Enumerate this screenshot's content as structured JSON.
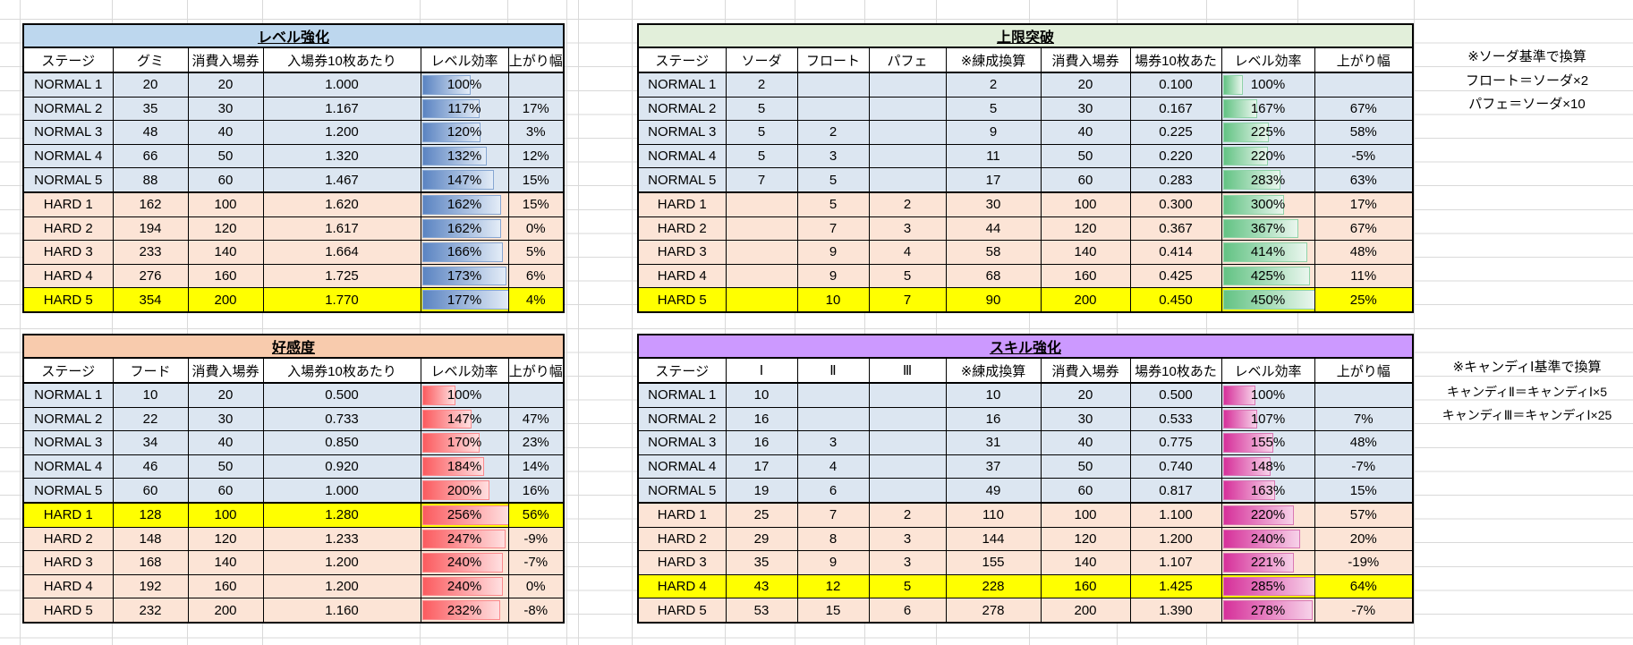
{
  "tables": [
    {
      "id": "level",
      "title": "レベル強化",
      "title_bg": "#bdd7ee",
      "columns": [
        "ステージ",
        "グミ",
        "消費入場券",
        "入場券10枚あたり",
        "レベル効率",
        "上がり幅"
      ],
      "thick_cols": [
        0
      ],
      "bar": {
        "start": "#5b84c2",
        "end": "#e3ecf7",
        "border": "#86a6d2"
      },
      "bar_max": 177,
      "highlight_index": 9,
      "rows": [
        {
          "stage": "NORMAL 1",
          "cells": [
            "20",
            "20",
            "1.000"
          ],
          "eff": 100,
          "gain": ""
        },
        {
          "stage": "NORMAL 2",
          "cells": [
            "35",
            "30",
            "1.167"
          ],
          "eff": 117,
          "gain": "17%"
        },
        {
          "stage": "NORMAL 3",
          "cells": [
            "48",
            "40",
            "1.200"
          ],
          "eff": 120,
          "gain": "3%"
        },
        {
          "stage": "NORMAL 4",
          "cells": [
            "66",
            "50",
            "1.320"
          ],
          "eff": 132,
          "gain": "12%"
        },
        {
          "stage": "NORMAL 5",
          "cells": [
            "88",
            "60",
            "1.467"
          ],
          "eff": 147,
          "gain": "15%"
        },
        {
          "stage": "HARD 1",
          "cells": [
            "162",
            "100",
            "1.620"
          ],
          "eff": 162,
          "gain": "15%"
        },
        {
          "stage": "HARD 2",
          "cells": [
            "194",
            "120",
            "1.617"
          ],
          "eff": 162,
          "gain": "0%"
        },
        {
          "stage": "HARD 3",
          "cells": [
            "233",
            "140",
            "1.664"
          ],
          "eff": 166,
          "gain": "5%"
        },
        {
          "stage": "HARD 4",
          "cells": [
            "276",
            "160",
            "1.725"
          ],
          "eff": 173,
          "gain": "6%"
        },
        {
          "stage": "HARD 5",
          "cells": [
            "354",
            "200",
            "1.770"
          ],
          "eff": 177,
          "gain": "4%"
        }
      ]
    },
    {
      "id": "limit",
      "title": "上限突破",
      "title_bg": "#e2efda",
      "columns": [
        "ステージ",
        "ソーダ",
        "フロート",
        "パフェ",
        "※練成換算",
        "消費入場券",
        "場券10枚あた",
        "レベル効率",
        "上がり幅"
      ],
      "thick_cols": [
        0,
        3
      ],
      "bar": {
        "start": "#63c384",
        "end": "#eaf6ee",
        "border": "#8fd3a8"
      },
      "bar_max": 450,
      "highlight_index": 9,
      "rows": [
        {
          "stage": "NORMAL 1",
          "cells": [
            "2",
            "",
            "",
            "2",
            "20",
            "0.100"
          ],
          "eff": 100,
          "gain": ""
        },
        {
          "stage": "NORMAL 2",
          "cells": [
            "5",
            "",
            "",
            "5",
            "30",
            "0.167"
          ],
          "eff": 167,
          "gain": "67%"
        },
        {
          "stage": "NORMAL 3",
          "cells": [
            "5",
            "2",
            "",
            "9",
            "40",
            "0.225"
          ],
          "eff": 225,
          "gain": "58%"
        },
        {
          "stage": "NORMAL 4",
          "cells": [
            "5",
            "3",
            "",
            "11",
            "50",
            "0.220"
          ],
          "eff": 220,
          "gain": "-5%"
        },
        {
          "stage": "NORMAL 5",
          "cells": [
            "7",
            "5",
            "",
            "17",
            "60",
            "0.283"
          ],
          "eff": 283,
          "gain": "63%"
        },
        {
          "stage": "HARD 1",
          "cells": [
            "",
            "5",
            "2",
            "30",
            "100",
            "0.300"
          ],
          "eff": 300,
          "gain": "17%"
        },
        {
          "stage": "HARD 2",
          "cells": [
            "",
            "7",
            "3",
            "44",
            "120",
            "0.367"
          ],
          "eff": 367,
          "gain": "67%"
        },
        {
          "stage": "HARD 3",
          "cells": [
            "",
            "9",
            "4",
            "58",
            "140",
            "0.414"
          ],
          "eff": 414,
          "gain": "48%"
        },
        {
          "stage": "HARD 4",
          "cells": [
            "",
            "9",
            "5",
            "68",
            "160",
            "0.425"
          ],
          "eff": 425,
          "gain": "11%"
        },
        {
          "stage": "HARD 5",
          "cells": [
            "",
            "10",
            "7",
            "90",
            "200",
            "0.450"
          ],
          "eff": 450,
          "gain": "25%"
        }
      ]
    },
    {
      "id": "affection",
      "title": "好感度",
      "title_bg": "#f8cbad",
      "columns": [
        "ステージ",
        "フード",
        "消費入場券",
        "入場券10枚あたり",
        "レベル効率",
        "上がり幅"
      ],
      "thick_cols": [
        0
      ],
      "bar": {
        "start": "#fb5b5f",
        "end": "#ffdfe0",
        "border": "#fb8a8d"
      },
      "bar_max": 256,
      "highlight_index": 5,
      "rows": [
        {
          "stage": "NORMAL 1",
          "cells": [
            "10",
            "20",
            "0.500"
          ],
          "eff": 100,
          "gain": ""
        },
        {
          "stage": "NORMAL 2",
          "cells": [
            "22",
            "30",
            "0.733"
          ],
          "eff": 147,
          "gain": "47%"
        },
        {
          "stage": "NORMAL 3",
          "cells": [
            "34",
            "40",
            "0.850"
          ],
          "eff": 170,
          "gain": "23%"
        },
        {
          "stage": "NORMAL 4",
          "cells": [
            "46",
            "50",
            "0.920"
          ],
          "eff": 184,
          "gain": "14%"
        },
        {
          "stage": "NORMAL 5",
          "cells": [
            "60",
            "60",
            "1.000"
          ],
          "eff": 200,
          "gain": "16%"
        },
        {
          "stage": "HARD 1",
          "cells": [
            "128",
            "100",
            "1.280"
          ],
          "eff": 256,
          "gain": "56%"
        },
        {
          "stage": "HARD 2",
          "cells": [
            "148",
            "120",
            "1.233"
          ],
          "eff": 247,
          "gain": "-9%"
        },
        {
          "stage": "HARD 3",
          "cells": [
            "168",
            "140",
            "1.200"
          ],
          "eff": 240,
          "gain": "-7%"
        },
        {
          "stage": "HARD 4",
          "cells": [
            "192",
            "160",
            "1.200"
          ],
          "eff": 240,
          "gain": "0%"
        },
        {
          "stage": "HARD 5",
          "cells": [
            "232",
            "200",
            "1.160"
          ],
          "eff": 232,
          "gain": "-8%"
        }
      ]
    },
    {
      "id": "skill",
      "title": "スキル強化",
      "title_bg": "#cc99ff",
      "columns": [
        "ステージ",
        "Ⅰ",
        "Ⅱ",
        "Ⅲ",
        "※練成換算",
        "消費入場券",
        "場券10枚あた",
        "レベル効率",
        "上がり幅"
      ],
      "thick_cols": [
        0,
        3
      ],
      "bar": {
        "start": "#d6309a",
        "end": "#f7d2e9",
        "border": "#d977b4"
      },
      "bar_max": 285,
      "highlight_index": 8,
      "rows": [
        {
          "stage": "NORMAL 1",
          "cells": [
            "10",
            "",
            "",
            "10",
            "20",
            "0.500"
          ],
          "eff": 100,
          "gain": ""
        },
        {
          "stage": "NORMAL 2",
          "cells": [
            "16",
            "",
            "",
            "16",
            "30",
            "0.533"
          ],
          "eff": 107,
          "gain": "7%"
        },
        {
          "stage": "NORMAL 3",
          "cells": [
            "16",
            "3",
            "",
            "31",
            "40",
            "0.775"
          ],
          "eff": 155,
          "gain": "48%"
        },
        {
          "stage": "NORMAL 4",
          "cells": [
            "17",
            "4",
            "",
            "37",
            "50",
            "0.740"
          ],
          "eff": 148,
          "gain": "-7%"
        },
        {
          "stage": "NORMAL 5",
          "cells": [
            "19",
            "6",
            "",
            "49",
            "60",
            "0.817"
          ],
          "eff": 163,
          "gain": "15%"
        },
        {
          "stage": "HARD 1",
          "cells": [
            "25",
            "7",
            "2",
            "110",
            "100",
            "1.100"
          ],
          "eff": 220,
          "gain": "57%"
        },
        {
          "stage": "HARD 2",
          "cells": [
            "29",
            "8",
            "3",
            "144",
            "120",
            "1.200"
          ],
          "eff": 240,
          "gain": "20%"
        },
        {
          "stage": "HARD 3",
          "cells": [
            "35",
            "9",
            "3",
            "155",
            "140",
            "1.107"
          ],
          "eff": 221,
          "gain": "-19%"
        },
        {
          "stage": "HARD 4",
          "cells": [
            "43",
            "12",
            "5",
            "228",
            "160",
            "1.425"
          ],
          "eff": 285,
          "gain": "64%"
        },
        {
          "stage": "HARD 5",
          "cells": [
            "53",
            "15",
            "6",
            "278",
            "200",
            "1.390"
          ],
          "eff": 278,
          "gain": "-7%"
        }
      ]
    }
  ],
  "notes": [
    {
      "lines": [
        "※ソーダ基準で換算",
        "フロート＝ソーダ×2",
        "パフェ＝ソーダ×10"
      ]
    },
    {
      "lines": [
        "※キャンディⅠ基準で換算",
        "キャンディⅡ＝キャンディⅠ×5",
        "キャンディⅢ＝キャンディⅠ×25"
      ]
    }
  ],
  "colors": {
    "normal_row_bg": "#dce6f1",
    "hard_row_bg": "#fce4d6",
    "highlight_bg": "#ffff00",
    "gridline": "#d9d9d9"
  }
}
